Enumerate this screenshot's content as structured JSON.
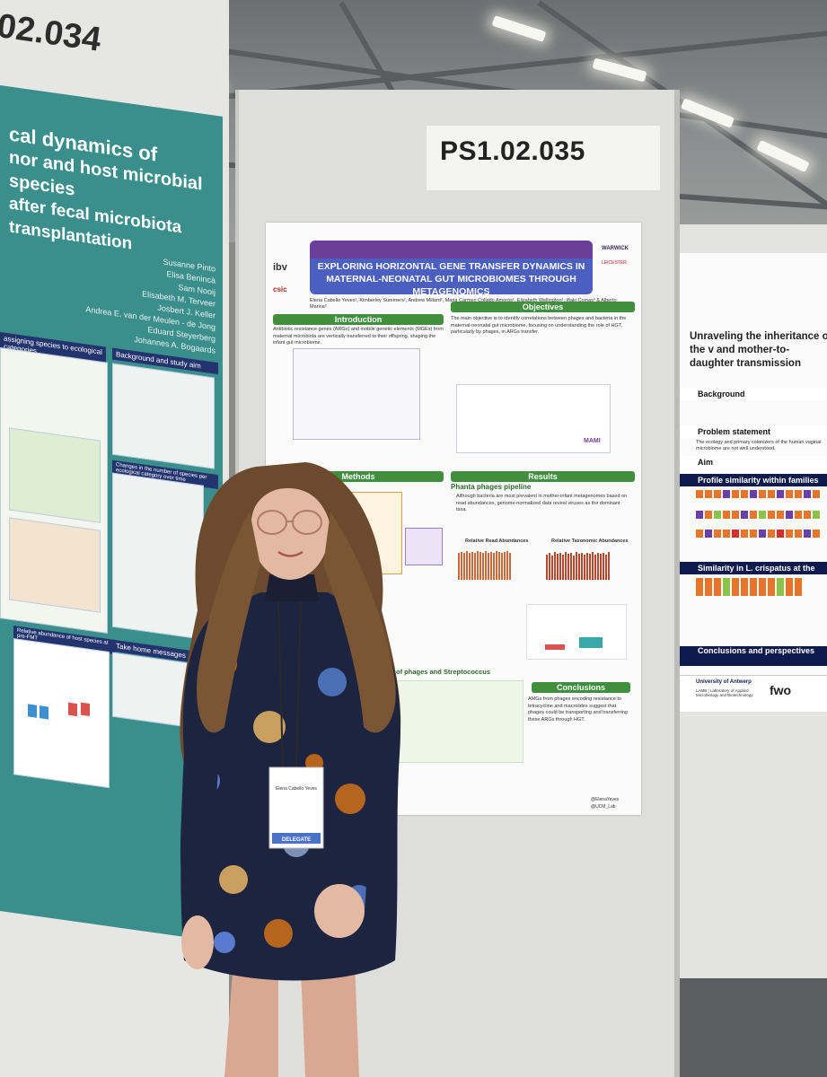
{
  "left_poster": {
    "board_number": "02.034",
    "title_lines": [
      "cal dynamics of",
      "nor and host microbial species",
      "after fecal microbiota transplantation"
    ],
    "authors": [
      "Susanne Pinto",
      "Elisa Benincà",
      "Sam Nooij",
      "Elisabeth M. Terveer",
      "Josbert J. Keller",
      "Andrea E. van der Meulen - de Jong",
      "Eduard Steyerberg",
      "Johannes A. Bogaards"
    ],
    "sections": [
      "Background and study aim",
      "Changes in the number of species per ecological category over time",
      "Relative abundance of host species at pre-FMT",
      "Take home messages",
      "assigning species to ecological categories"
    ]
  },
  "main_poster": {
    "board_number": "PS1.02.035",
    "title": "EXPLORING HORIZONTAL GENE TRANSFER DYNAMICS IN MATERNAL-NEONATAL GUT MICROBIOMES THROUGH METAGENOMICS",
    "authors": "Elena Cabello Yeves¹, Kimberley Summers², Andrew Millard², Maria Carmen Collado Amorós¹, Elizabeth Wellington², Iñaki Comas³ & Alberto Marina³",
    "sections": {
      "introduction": "Introduction",
      "objectives": "Objectives",
      "methods": "Methods",
      "results": "Results",
      "phanta": "Phanta phages pipeline",
      "conclusions": "Conclusions",
      "pipeline": "pipeline",
      "streptococcus": "of phages and Streptococcus"
    },
    "intro_text": "Antibiotic resistance genes (ARGs) and mobile genetic elements (MGEs) from maternal microbiota are vertically transferred to their offspring, shaping the infant gut microbiome.",
    "objectives_text": "The main objective is to identify correlations between phages and bacteria in the maternal-neonatal gut microbiome, focusing on understanding the role of HGT, particularly by phages, in ARGs transfer.",
    "results_text": "Although bacteria are most prevalent in mother-infant metagenomes based on read abundances, genome-normalized data reveal viruses as the dominant taxa.",
    "chart_labels": [
      "Relative Read Abundances",
      "Relative Taxonomic Abundances"
    ],
    "conclusions_text": "AMGs from phages encoding resistance to tetracycline and macrolides suggest that phages could be transporting and transferring these ARGs through HGT.",
    "footer": "@ElenaYeves @UCM_Lab",
    "logos": [
      "ibv",
      "csic",
      "WARWICK",
      "LEICESTER",
      "MAMI"
    ]
  },
  "right_poster": {
    "title": "Unraveling the inheritance of the v and mother-to-daughter transmission",
    "sections": [
      "Background",
      "Problem statement",
      "Aim",
      "Profile similarity within families (N=",
      "Similarity in L. crispatus at the subsp",
      "Conclusions and perspectives"
    ],
    "problem_text": "The ecology and primary colonizers of the human vaginal microbiome are not well understood.",
    "footer": [
      "University of Antwerp",
      "LAMB | Laboratory of Applied Microbiology and Biotechnology",
      "fwo"
    ]
  },
  "badge": {
    "name": "Elena Cabello Yeves",
    "role": "DELEGATE"
  },
  "colors": {
    "teal_poster": "#3a8f8c",
    "navy_header": "#23336e",
    "title_blue": "#4a5fbf",
    "section_green": "#3f8f3f",
    "dress_navy": "#1c2440",
    "hair": "#6b4a2e"
  }
}
